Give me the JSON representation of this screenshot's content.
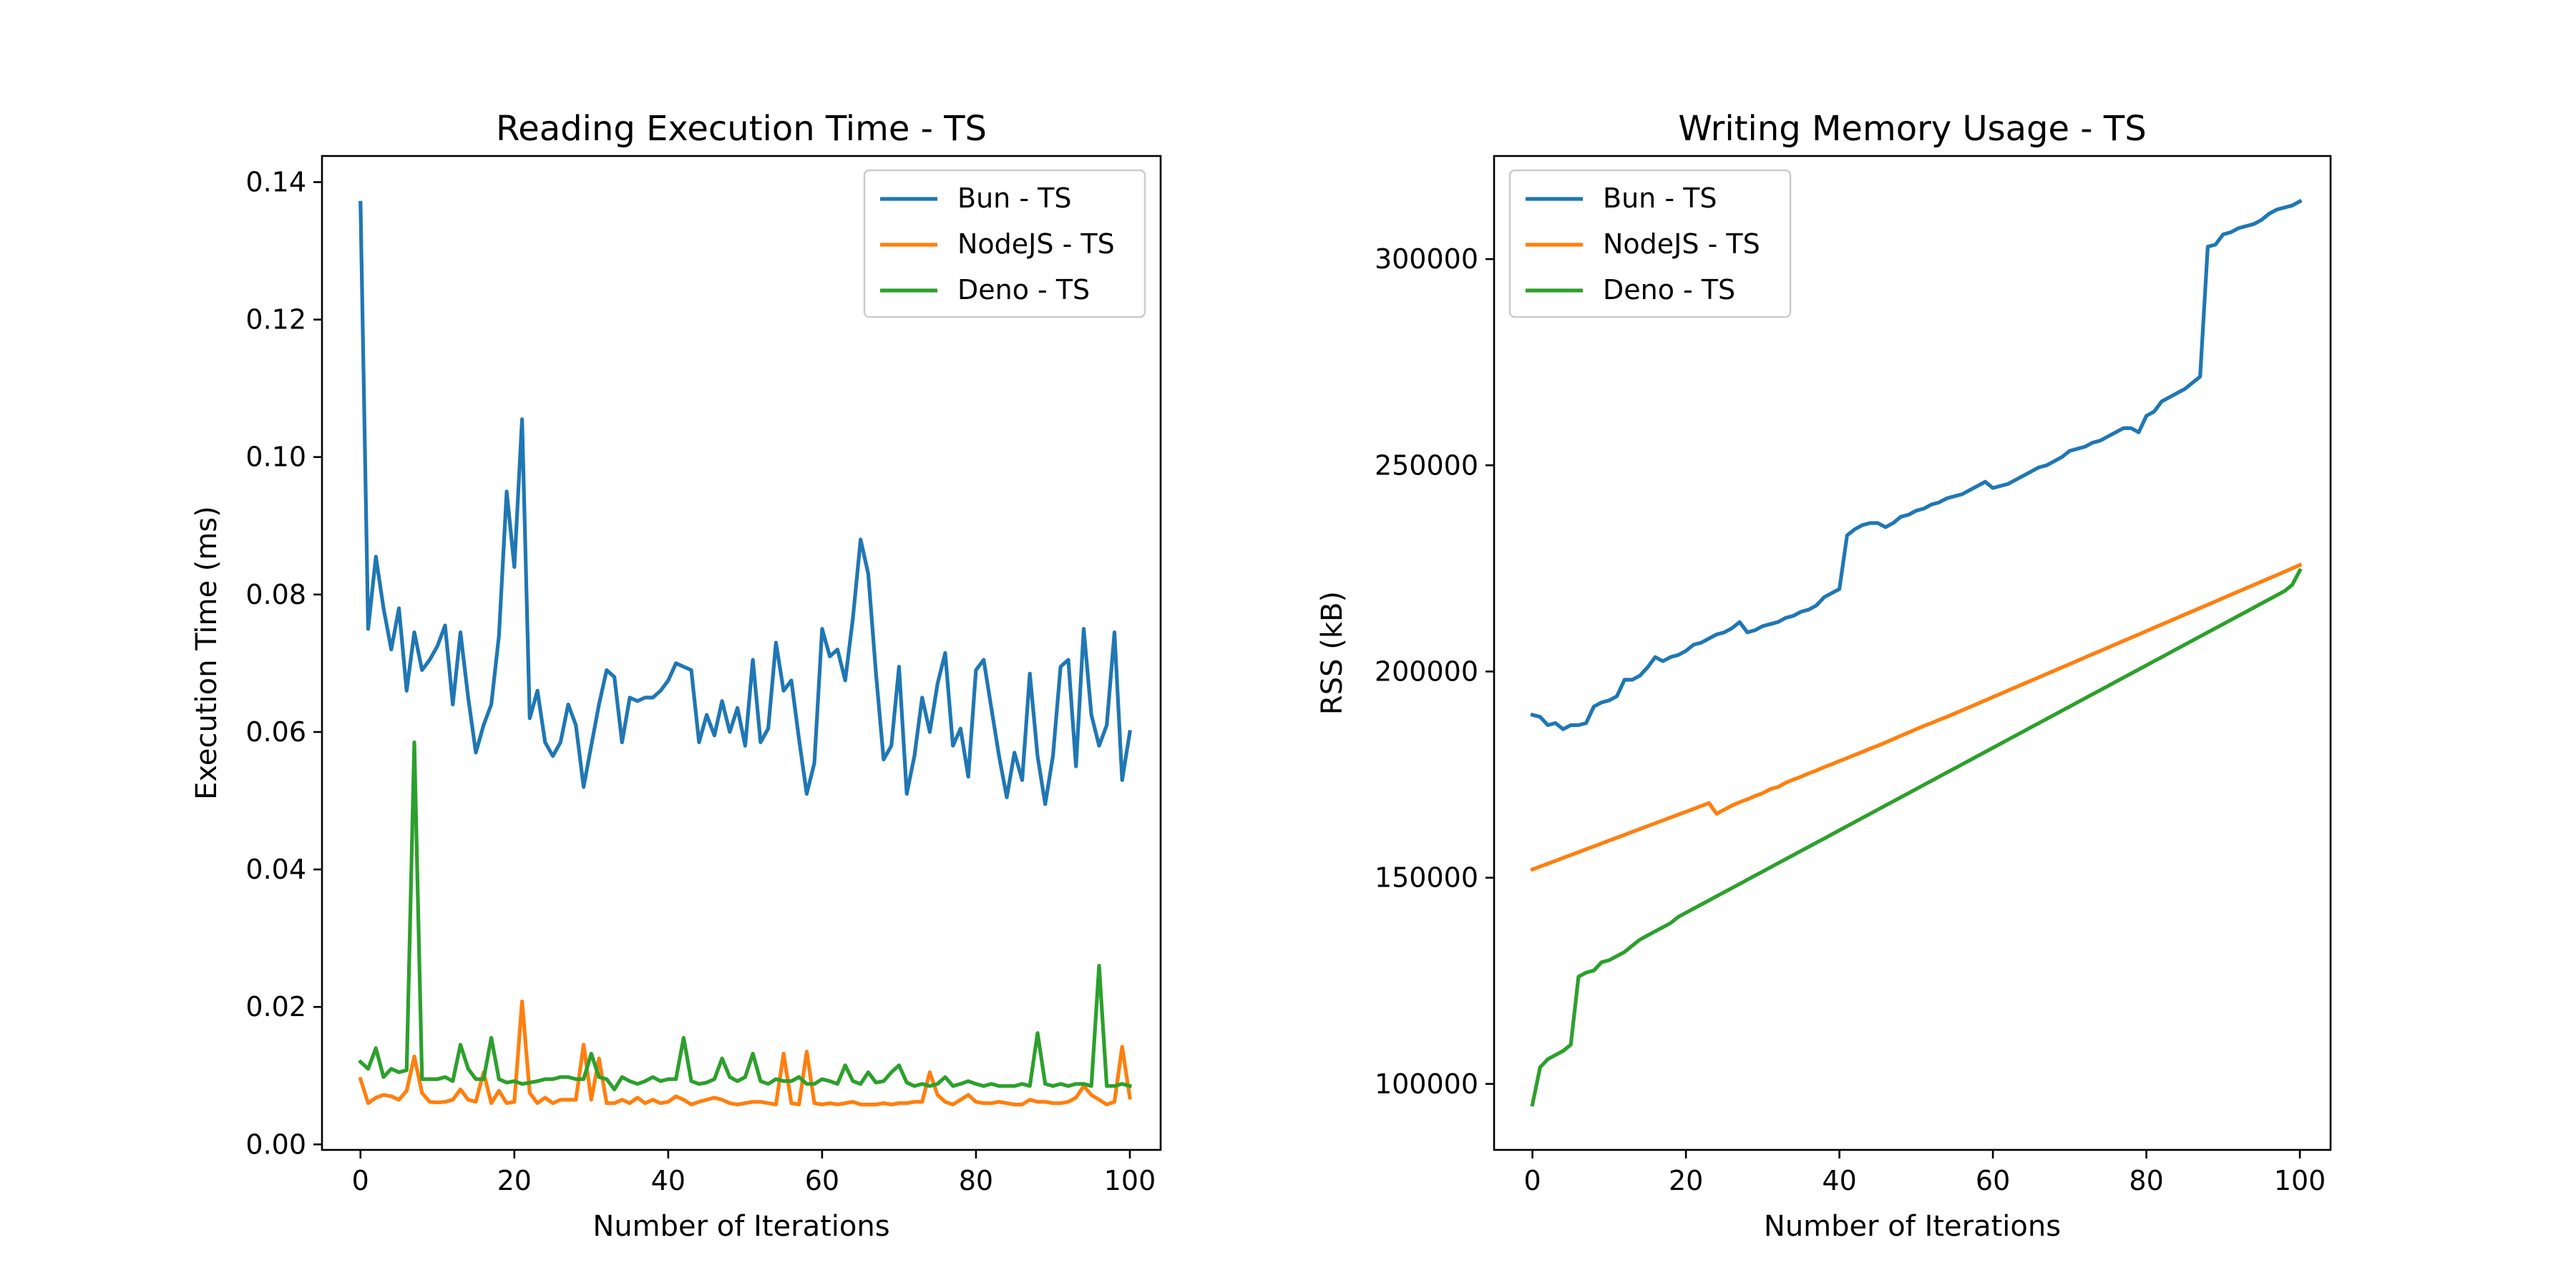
{
  "chart_data": [
    {
      "type": "line",
      "title": "Reading Execution Time - TS",
      "xlabel": "Number of Iterations",
      "ylabel": "Execution Time (ms)",
      "xlim": [
        -5,
        104
      ],
      "ylim": [
        -0.0008,
        0.1438
      ],
      "xticks": [
        0,
        20,
        40,
        60,
        80,
        100
      ],
      "xtick_labels": [
        "0",
        "20",
        "40",
        "60",
        "80",
        "100"
      ],
      "yticks": [
        0.0,
        0.02,
        0.04,
        0.06,
        0.08,
        0.1,
        0.12,
        0.14
      ],
      "ytick_labels": [
        "0.00",
        "0.02",
        "0.04",
        "0.06",
        "0.08",
        "0.10",
        "0.12",
        "0.14"
      ],
      "legend_position": "upper right",
      "grid": false,
      "series": [
        {
          "name": "Bun - TS",
          "color": "#1f77b4",
          "values": [
            0.137,
            0.075,
            0.0855,
            0.078,
            0.072,
            0.078,
            0.066,
            0.0745,
            0.069,
            0.0705,
            0.0725,
            0.0755,
            0.064,
            0.0745,
            0.065,
            0.057,
            0.061,
            0.064,
            0.074,
            0.095,
            0.084,
            0.1055,
            0.062,
            0.066,
            0.0585,
            0.0565,
            0.0585,
            0.064,
            0.061,
            0.052,
            0.058,
            0.064,
            0.069,
            0.068,
            0.0585,
            0.065,
            0.0645,
            0.065,
            0.065,
            0.066,
            0.0675,
            0.07,
            0.0695,
            0.069,
            0.0585,
            0.0625,
            0.0595,
            0.0645,
            0.06,
            0.0635,
            0.058,
            0.0705,
            0.0585,
            0.0605,
            0.073,
            0.066,
            0.0675,
            0.059,
            0.051,
            0.0555,
            0.075,
            0.071,
            0.072,
            0.0675,
            0.0765,
            0.088,
            0.083,
            0.0685,
            0.056,
            0.058,
            0.0695,
            0.051,
            0.0565,
            0.065,
            0.06,
            0.067,
            0.0715,
            0.058,
            0.0605,
            0.0535,
            0.069,
            0.0705,
            0.0635,
            0.0565,
            0.0505,
            0.057,
            0.053,
            0.0685,
            0.0565,
            0.0495,
            0.0565,
            0.0695,
            0.0705,
            0.055,
            0.075,
            0.0625,
            0.058,
            0.061,
            0.0745,
            0.053,
            0.06
          ]
        },
        {
          "name": "NodeJS - TS",
          "color": "#ff7f0e",
          "values": [
            0.0095,
            0.006,
            0.0068,
            0.0072,
            0.007,
            0.0065,
            0.0078,
            0.0128,
            0.0075,
            0.0062,
            0.0061,
            0.0062,
            0.0065,
            0.008,
            0.0065,
            0.0062,
            0.0105,
            0.006,
            0.0078,
            0.006,
            0.0062,
            0.0208,
            0.0075,
            0.006,
            0.0068,
            0.006,
            0.0065,
            0.0065,
            0.0065,
            0.0145,
            0.0065,
            0.0125,
            0.006,
            0.006,
            0.0065,
            0.006,
            0.0068,
            0.006,
            0.0065,
            0.006,
            0.0062,
            0.007,
            0.0065,
            0.0058,
            0.0062,
            0.0065,
            0.0068,
            0.0065,
            0.006,
            0.0058,
            0.006,
            0.0062,
            0.0062,
            0.006,
            0.0058,
            0.0132,
            0.006,
            0.0058,
            0.0135,
            0.006,
            0.0058,
            0.006,
            0.0058,
            0.006,
            0.0062,
            0.0058,
            0.0058,
            0.0058,
            0.006,
            0.0058,
            0.006,
            0.006,
            0.0062,
            0.0062,
            0.0105,
            0.0072,
            0.0062,
            0.0058,
            0.0065,
            0.0072,
            0.0062,
            0.006,
            0.006,
            0.0062,
            0.006,
            0.0058,
            0.0058,
            0.0065,
            0.0062,
            0.0062,
            0.006,
            0.006,
            0.0062,
            0.0068,
            0.0085,
            0.0072,
            0.0065,
            0.0058,
            0.0062,
            0.0142,
            0.0068
          ]
        },
        {
          "name": "Deno - TS",
          "color": "#2ca02c",
          "values": [
            0.012,
            0.011,
            0.014,
            0.0098,
            0.011,
            0.0105,
            0.0108,
            0.0585,
            0.0095,
            0.0095,
            0.0095,
            0.0098,
            0.0092,
            0.0145,
            0.011,
            0.0095,
            0.0095,
            0.0155,
            0.0095,
            0.009,
            0.0092,
            0.0088,
            0.009,
            0.0092,
            0.0095,
            0.0095,
            0.0098,
            0.0098,
            0.0095,
            0.0095,
            0.0132,
            0.0098,
            0.0095,
            0.008,
            0.0098,
            0.0092,
            0.0088,
            0.0092,
            0.0098,
            0.0092,
            0.0095,
            0.0095,
            0.0155,
            0.0092,
            0.0088,
            0.009,
            0.0095,
            0.0125,
            0.0098,
            0.0092,
            0.0098,
            0.0132,
            0.0092,
            0.0088,
            0.0095,
            0.0092,
            0.0092,
            0.0098,
            0.0088,
            0.0088,
            0.0095,
            0.0092,
            0.0088,
            0.0115,
            0.0092,
            0.0088,
            0.0105,
            0.009,
            0.0092,
            0.0105,
            0.0115,
            0.009,
            0.0085,
            0.0088,
            0.0085,
            0.0088,
            0.0098,
            0.0085,
            0.0088,
            0.0092,
            0.0088,
            0.0085,
            0.0088,
            0.0085,
            0.0085,
            0.0085,
            0.0088,
            0.0085,
            0.0162,
            0.0088,
            0.0085,
            0.0088,
            0.0085,
            0.0088,
            0.0088,
            0.0085,
            0.026,
            0.0085,
            0.0085,
            0.0088,
            0.0085
          ]
        }
      ]
    },
    {
      "type": "line",
      "title": "Writing Memory Usage - TS",
      "xlabel": "Number of Iterations",
      "ylabel": "RSS (kB)",
      "xlim": [
        -5,
        104
      ],
      "ylim": [
        84000,
        325000
      ],
      "xticks": [
        0,
        20,
        40,
        60,
        80,
        100
      ],
      "xtick_labels": [
        "0",
        "20",
        "40",
        "60",
        "80",
        "100"
      ],
      "yticks": [
        100000,
        150000,
        200000,
        250000,
        300000
      ],
      "ytick_labels": [
        "100000",
        "150000",
        "200000",
        "250000",
        "300000"
      ],
      "legend_position": "upper left",
      "grid": false,
      "series": [
        {
          "name": "Bun - TS",
          "color": "#1f77b4",
          "values": [
            189500,
            189000,
            187000,
            187500,
            186000,
            187000,
            187000,
            187500,
            191500,
            192500,
            193000,
            194000,
            198000,
            198000,
            199000,
            201000,
            203500,
            202500,
            203500,
            204000,
            205000,
            206500,
            207000,
            208000,
            209000,
            209500,
            210500,
            212000,
            209500,
            210000,
            211000,
            211500,
            212000,
            213000,
            213500,
            214500,
            215000,
            216000,
            218000,
            219000,
            220000,
            233000,
            234500,
            235500,
            236000,
            236000,
            235000,
            236000,
            237500,
            238000,
            239000,
            239500,
            240500,
            241000,
            242000,
            242500,
            243000,
            244000,
            245000,
            246000,
            244500,
            245000,
            245500,
            246500,
            247500,
            248500,
            249500,
            250000,
            251000,
            252000,
            253500,
            254000,
            254500,
            255500,
            256000,
            257000,
            258000,
            259000,
            259000,
            258000,
            262000,
            263000,
            265500,
            266500,
            267500,
            268500,
            270000,
            271500,
            303000,
            303500,
            306000,
            306500,
            307500,
            308000,
            308500,
            309500,
            311000,
            312000,
            312500,
            313000,
            314000
          ]
        },
        {
          "name": "NodeJS - TS",
          "color": "#ff7f0e",
          "values": [
            152000,
            152700,
            153400,
            154100,
            154800,
            155500,
            156200,
            156900,
            157600,
            158300,
            159000,
            159700,
            160400,
            161100,
            161800,
            162500,
            163200,
            163900,
            164600,
            165300,
            166000,
            166700,
            167400,
            168100,
            165500,
            166500,
            167500,
            168300,
            169000,
            169800,
            170500,
            171500,
            172000,
            173000,
            173800,
            174500,
            175300,
            176000,
            176800,
            177500,
            178300,
            179000,
            179800,
            180500,
            181300,
            182000,
            182800,
            183600,
            184400,
            185200,
            186000,
            186800,
            187500,
            188300,
            189000,
            189800,
            190600,
            191400,
            192200,
            193000,
            193800,
            194600,
            195400,
            196200,
            197000,
            197800,
            198600,
            199400,
            200200,
            201000,
            201800,
            202600,
            203400,
            204200,
            205000,
            205800,
            206600,
            207400,
            208200,
            209000,
            209800,
            210600,
            211400,
            212200,
            213000,
            213800,
            214600,
            215400,
            216200,
            217000,
            217800,
            218600,
            219400,
            220200,
            221000,
            221800,
            222600,
            223400,
            224200,
            225000,
            225800
          ]
        },
        {
          "name": "Deno - TS",
          "color": "#2ca02c",
          "values": [
            95000,
            104000,
            106000,
            107000,
            108000,
            109500,
            126000,
            127000,
            127500,
            129500,
            130000,
            131000,
            132000,
            133500,
            135000,
            136000,
            137000,
            138000,
            139000,
            140500,
            141500,
            142500,
            143500,
            144500,
            145500,
            146500,
            147500,
            148500,
            149500,
            150500,
            151500,
            152500,
            153500,
            154500,
            155500,
            156500,
            157500,
            158500,
            159500,
            160500,
            161500,
            162500,
            163500,
            164500,
            165500,
            166500,
            167500,
            168500,
            169500,
            170500,
            171500,
            172500,
            173500,
            174500,
            175500,
            176500,
            177500,
            178500,
            179500,
            180500,
            181500,
            182500,
            183500,
            184500,
            185500,
            186500,
            187500,
            188500,
            189500,
            190500,
            191500,
            192500,
            193500,
            194500,
            195500,
            196500,
            197500,
            198500,
            199500,
            200500,
            201500,
            202500,
            203500,
            204500,
            205500,
            206500,
            207500,
            208500,
            209500,
            210500,
            211500,
            212500,
            213500,
            214500,
            215500,
            216500,
            217500,
            218500,
            219500,
            221000,
            224500
          ]
        }
      ]
    }
  ]
}
